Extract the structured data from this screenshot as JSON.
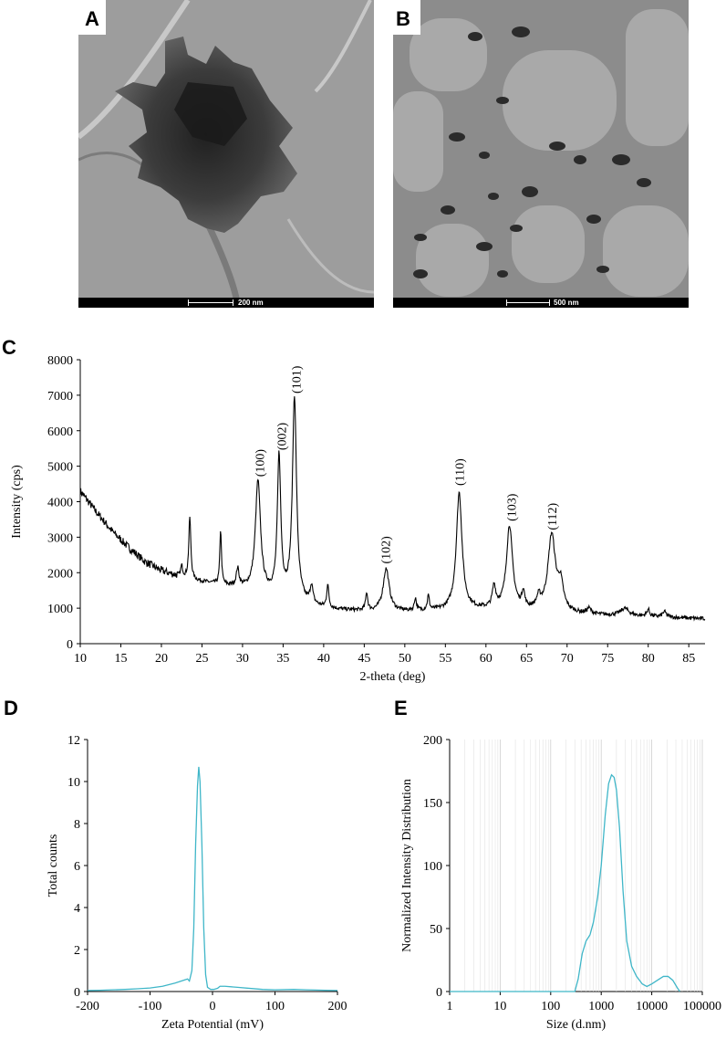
{
  "panels": {
    "a": {
      "letter": "A",
      "scale_label": "200 nm"
    },
    "b": {
      "letter": "B",
      "scale_label": "500 nm"
    },
    "c": {
      "letter": "C"
    },
    "d": {
      "letter": "D"
    },
    "e": {
      "letter": "E"
    }
  },
  "chart_data": [
    {
      "id": "C",
      "type": "line",
      "xlabel": "2-theta (deg)",
      "ylabel": "Intensity (cps)",
      "xlim": [
        10,
        87
      ],
      "ylim": [
        0,
        8000
      ],
      "xticks": [
        10,
        15,
        20,
        25,
        30,
        35,
        40,
        45,
        50,
        55,
        60,
        65,
        70,
        75,
        80,
        85
      ],
      "yticks": [
        0,
        1000,
        2000,
        3000,
        4000,
        5000,
        6000,
        7000,
        8000
      ],
      "color": "#000000",
      "baseline": [
        [
          10,
          4300
        ],
        [
          12,
          3700
        ],
        [
          14,
          3150
        ],
        [
          16,
          2700
        ],
        [
          18,
          2300
        ],
        [
          20,
          2050
        ],
        [
          22,
          1900
        ],
        [
          24,
          1780
        ],
        [
          26,
          1700
        ],
        [
          28,
          1620
        ],
        [
          30,
          1550
        ],
        [
          32,
          1450
        ],
        [
          34,
          1350
        ],
        [
          36,
          1250
        ],
        [
          38,
          1100
        ],
        [
          40,
          1000
        ],
        [
          42,
          950
        ],
        [
          44,
          920
        ],
        [
          46,
          900
        ],
        [
          50,
          900
        ],
        [
          54,
          920
        ],
        [
          58,
          950
        ],
        [
          62,
          950
        ],
        [
          66,
          900
        ],
        [
          70,
          850
        ],
        [
          74,
          800
        ],
        [
          78,
          780
        ],
        [
          82,
          740
        ],
        [
          87,
          700
        ]
      ],
      "peaks": [
        {
          "x": 22.5,
          "height": 300,
          "width": 0.15
        },
        {
          "x": 23.5,
          "height": 1750,
          "width": 0.15
        },
        {
          "x": 27.3,
          "height": 1550,
          "width": 0.12
        },
        {
          "x": 29.4,
          "height": 500,
          "width": 0.2
        },
        {
          "x": 31.9,
          "height": 3100,
          "width": 0.38
        },
        {
          "x": 34.5,
          "height": 3900,
          "width": 0.25
        },
        {
          "x": 36.4,
          "height": 5700,
          "width": 0.3
        },
        {
          "x": 38.5,
          "height": 500,
          "width": 0.2
        },
        {
          "x": 40.5,
          "height": 650,
          "width": 0.15
        },
        {
          "x": 45.3,
          "height": 500,
          "width": 0.15
        },
        {
          "x": 47.7,
          "height": 1200,
          "width": 0.45
        },
        {
          "x": 51.3,
          "height": 350,
          "width": 0.15
        },
        {
          "x": 52.9,
          "height": 400,
          "width": 0.15
        },
        {
          "x": 56.7,
          "height": 3300,
          "width": 0.42
        },
        {
          "x": 61.0,
          "height": 600,
          "width": 0.25
        },
        {
          "x": 62.9,
          "height": 2350,
          "width": 0.45
        },
        {
          "x": 64.6,
          "height": 450,
          "width": 0.2
        },
        {
          "x": 66.5,
          "height": 300,
          "width": 0.3
        },
        {
          "x": 68.1,
          "height": 2150,
          "width": 0.55
        },
        {
          "x": 69.2,
          "height": 700,
          "width": 0.4
        },
        {
          "x": 72.7,
          "height": 150,
          "width": 0.3
        },
        {
          "x": 77.1,
          "height": 200,
          "width": 0.6
        },
        {
          "x": 80.0,
          "height": 200,
          "width": 0.2
        },
        {
          "x": 82.0,
          "height": 150,
          "width": 0.3
        }
      ],
      "annotations": [
        {
          "label": "(100)",
          "x": 32.1,
          "y": 4700
        },
        {
          "label": "(002)",
          "x": 34.8,
          "y": 5450
        },
        {
          "label": "(101)",
          "x": 36.6,
          "y": 7050
        },
        {
          "label": "(102)",
          "x": 47.6,
          "y": 2250
        },
        {
          "label": "(110)",
          "x": 56.7,
          "y": 4450
        },
        {
          "label": "(103)",
          "x": 63.1,
          "y": 3450
        },
        {
          "label": "(112)",
          "x": 68.1,
          "y": 3200
        }
      ]
    },
    {
      "id": "D",
      "type": "line",
      "xlabel": "Zeta Potential (mV)",
      "ylabel": "Total counts",
      "xlim": [
        -200,
        200
      ],
      "ylim": [
        0,
        12
      ],
      "xticks": [
        -200,
        -100,
        0,
        100,
        200
      ],
      "yticks": [
        0,
        2,
        4,
        6,
        8,
        10,
        12
      ],
      "color": "#3fb6c8",
      "points": [
        [
          -200,
          0.05
        ],
        [
          -180,
          0.06
        ],
        [
          -160,
          0.08
        ],
        [
          -140,
          0.1
        ],
        [
          -120,
          0.13
        ],
        [
          -100,
          0.17
        ],
        [
          -80,
          0.25
        ],
        [
          -60,
          0.4
        ],
        [
          -45,
          0.55
        ],
        [
          -40,
          0.6
        ],
        [
          -37,
          0.5
        ],
        [
          -33,
          1.0
        ],
        [
          -30,
          3.0
        ],
        [
          -27,
          7.0
        ],
        [
          -24,
          9.8
        ],
        [
          -22,
          10.7
        ],
        [
          -20,
          10.0
        ],
        [
          -17,
          7.0
        ],
        [
          -14,
          3.0
        ],
        [
          -11,
          0.8
        ],
        [
          -8,
          0.2
        ],
        [
          -3,
          0.1
        ],
        [
          2,
          0.1
        ],
        [
          8,
          0.15
        ],
        [
          12,
          0.25
        ],
        [
          20,
          0.25
        ],
        [
          40,
          0.2
        ],
        [
          60,
          0.15
        ],
        [
          80,
          0.1
        ],
        [
          100,
          0.08
        ],
        [
          130,
          0.1
        ],
        [
          150,
          0.08
        ],
        [
          180,
          0.06
        ],
        [
          200,
          0.05
        ]
      ]
    },
    {
      "id": "E",
      "type": "line",
      "xscale": "log",
      "xlabel": "Size (d.nm)",
      "ylabel": "Normalized Intensity Distribution",
      "xlim": [
        1,
        100000
      ],
      "ylim": [
        0,
        200
      ],
      "xticks": [
        1,
        10,
        100,
        1000,
        10000,
        100000
      ],
      "xticklabels": [
        "1",
        "10",
        "100",
        "1000",
        "10000",
        "100000"
      ],
      "yticks": [
        0,
        50,
        100,
        150,
        200
      ],
      "color": "#3fb6c8",
      "points": [
        [
          1,
          0
        ],
        [
          100,
          0
        ],
        [
          300,
          0
        ],
        [
          350,
          10
        ],
        [
          420,
          30
        ],
        [
          500,
          40
        ],
        [
          600,
          45
        ],
        [
          700,
          55
        ],
        [
          850,
          75
        ],
        [
          1000,
          100
        ],
        [
          1200,
          140
        ],
        [
          1400,
          165
        ],
        [
          1600,
          172
        ],
        [
          1800,
          170
        ],
        [
          2000,
          160
        ],
        [
          2300,
          130
        ],
        [
          2700,
          80
        ],
        [
          3200,
          40
        ],
        [
          4000,
          20
        ],
        [
          5000,
          12
        ],
        [
          6500,
          6
        ],
        [
          8000,
          4
        ],
        [
          10000,
          6
        ],
        [
          13000,
          9
        ],
        [
          17000,
          12
        ],
        [
          21000,
          12
        ],
        [
          26000,
          9
        ],
        [
          32000,
          3
        ],
        [
          36000,
          0
        ]
      ]
    }
  ]
}
